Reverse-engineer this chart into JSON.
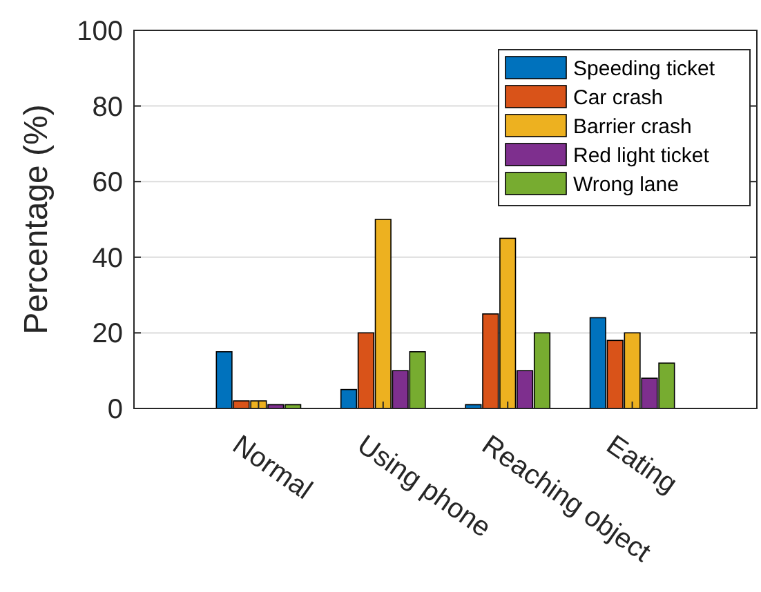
{
  "chart_data": {
    "type": "bar",
    "ylabel": "Percentage (%)",
    "categories": [
      "Normal",
      "Using phone",
      "Reaching object",
      "Eating"
    ],
    "series": [
      {
        "name": "Speeding ticket",
        "color": "#0072bd",
        "values": [
          15,
          5,
          1,
          24
        ]
      },
      {
        "name": "Car crash",
        "color": "#d95319",
        "values": [
          2,
          20,
          25,
          18
        ]
      },
      {
        "name": "Barrier crash",
        "color": "#edb120",
        "values": [
          2,
          50,
          45,
          20
        ]
      },
      {
        "name": "Red light ticket",
        "color": "#7e2f8e",
        "values": [
          1,
          10,
          10,
          8
        ]
      },
      {
        "name": "Wrong lane",
        "color": "#77ac30",
        "values": [
          1,
          15,
          20,
          12
        ]
      }
    ],
    "ylim": [
      0,
      100
    ],
    "yticks": [
      0,
      20,
      40,
      60,
      80,
      100
    ],
    "grid": "y",
    "legend": "top right"
  }
}
